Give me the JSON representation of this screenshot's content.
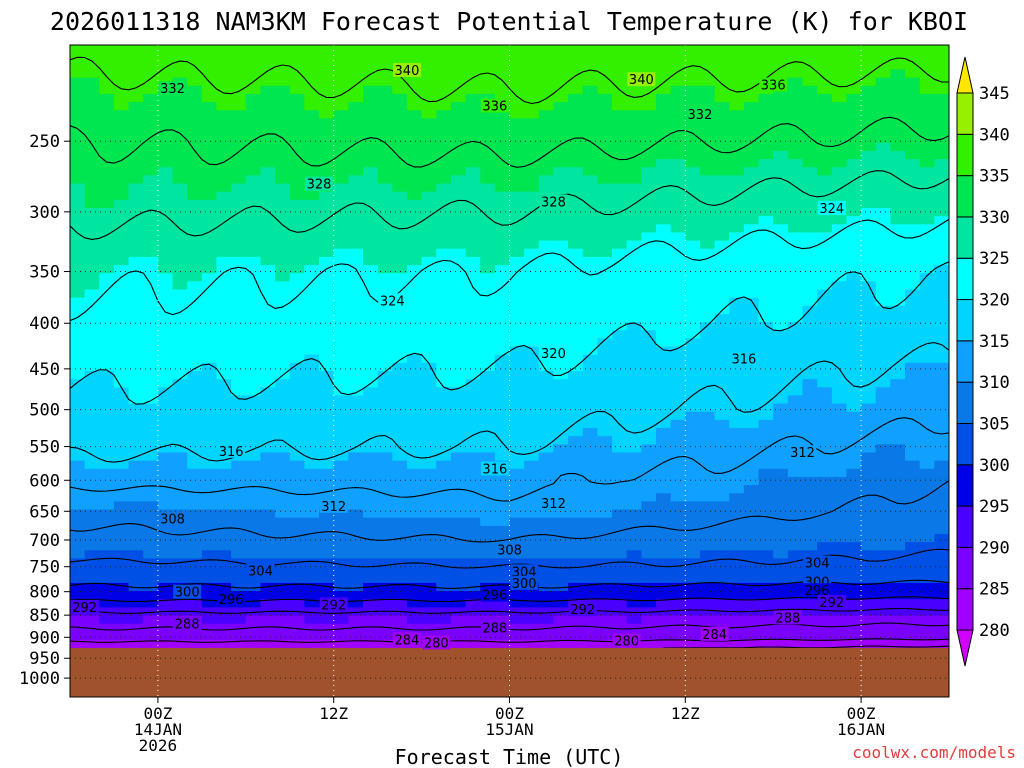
{
  "chart_data": {
    "type": "time-height contour",
    "title": "2026011318 NAM3KM Forecast Potential Temperature (K) for KBOI",
    "xlabel": "Forecast Time (UTC)",
    "ylabel": "",
    "credit": "coolwx.com/models",
    "y_axis": {
      "unit": "hPa",
      "scale": "log",
      "range": [
        200,
        1050
      ],
      "ticks": [
        250,
        300,
        350,
        400,
        450,
        500,
        550,
        600,
        650,
        700,
        750,
        800,
        850,
        900,
        950,
        1000
      ]
    },
    "x_axis": {
      "unit": "hours since 2026-01-13 18Z",
      "range": [
        0,
        60
      ],
      "ticks": [
        {
          "hour": 6,
          "lines": [
            "00Z",
            "14JAN",
            "2026"
          ]
        },
        {
          "hour": 18,
          "lines": [
            "12Z"
          ]
        },
        {
          "hour": 30,
          "lines": [
            "00Z",
            "15JAN"
          ]
        },
        {
          "hour": 42,
          "lines": [
            "12Z"
          ]
        },
        {
          "hour": 54,
          "lines": [
            "00Z",
            "16JAN"
          ]
        }
      ]
    },
    "ground_level_hpa": 925,
    "contour_interval": 4,
    "contour_levels": [
      280,
      284,
      288,
      292,
      296,
      300,
      304,
      308,
      312,
      316,
      320,
      324,
      328,
      332,
      336,
      340
    ],
    "contour_labels": [
      {
        "value": "340",
        "hour": 23,
        "p": 208
      },
      {
        "value": "340",
        "hour": 39,
        "p": 213
      },
      {
        "value": "336",
        "hour": 48,
        "p": 216
      },
      {
        "value": "332",
        "hour": 7,
        "p": 218
      },
      {
        "value": "336",
        "hour": 29,
        "p": 228
      },
      {
        "value": "332",
        "hour": 43,
        "p": 233
      },
      {
        "value": "328",
        "hour": 17,
        "p": 279
      },
      {
        "value": "328",
        "hour": 33,
        "p": 292
      },
      {
        "value": "324",
        "hour": 52,
        "p": 297
      },
      {
        "value": "324",
        "hour": 22,
        "p": 377
      },
      {
        "value": "320",
        "hour": 33,
        "p": 432
      },
      {
        "value": "316",
        "hour": 46,
        "p": 438
      },
      {
        "value": "316",
        "hour": 11,
        "p": 556
      },
      {
        "value": "312",
        "hour": 50,
        "p": 558
      },
      {
        "value": "316",
        "hour": 29,
        "p": 582
      },
      {
        "value": "312",
        "hour": 18,
        "p": 641
      },
      {
        "value": "312",
        "hour": 33,
        "p": 636
      },
      {
        "value": "308",
        "hour": 7,
        "p": 662
      },
      {
        "value": "308",
        "hour": 30,
        "p": 717
      },
      {
        "value": "304",
        "hour": 13,
        "p": 757
      },
      {
        "value": "304",
        "hour": 31,
        "p": 759
      },
      {
        "value": "304",
        "hour": 51,
        "p": 742
      },
      {
        "value": "300",
        "hour": 31,
        "p": 782
      },
      {
        "value": "300",
        "hour": 8,
        "p": 800
      },
      {
        "value": "300",
        "hour": 51,
        "p": 779
      },
      {
        "value": "296",
        "hour": 11,
        "p": 815
      },
      {
        "value": "296",
        "hour": 29,
        "p": 806
      },
      {
        "value": "296",
        "hour": 51,
        "p": 797
      },
      {
        "value": "292",
        "hour": 1,
        "p": 832
      },
      {
        "value": "292",
        "hour": 18,
        "p": 827
      },
      {
        "value": "292",
        "hour": 35,
        "p": 837
      },
      {
        "value": "292",
        "hour": 52,
        "p": 822
      },
      {
        "value": "288",
        "hour": 8,
        "p": 868
      },
      {
        "value": "288",
        "hour": 29,
        "p": 878
      },
      {
        "value": "288",
        "hour": 49,
        "p": 855
      },
      {
        "value": "284",
        "hour": 23,
        "p": 905
      },
      {
        "value": "280",
        "hour": 25,
        "p": 912
      },
      {
        "value": "284",
        "hour": 44,
        "p": 892
      },
      {
        "value": "280",
        "hour": 38,
        "p": 908
      }
    ],
    "colorbar": {
      "title": "Potential Temperature (K)",
      "labels": [
        280,
        285,
        290,
        295,
        300,
        305,
        310,
        315,
        320,
        325,
        330,
        335,
        340,
        345
      ],
      "colors": [
        "#d200ff",
        "#a000ff",
        "#7a00ff",
        "#4a00ff",
        "#0000e6",
        "#0050e6",
        "#0a78e6",
        "#10a0ff",
        "#00d4ff",
        "#00ffff",
        "#00e6a0",
        "#00e650",
        "#32f000",
        "#96f000",
        "#d2f000",
        "#ffe600"
      ],
      "extend": "both"
    },
    "ground_color": "#a0522d",
    "series": [
      {
        "name": "theta_1000_bottom",
        "hour": [
          0,
          60
        ],
        "theta_at_p": {
          "925": 281
        }
      },
      {
        "name": "theta_profile_hour0",
        "pressure": [
          925,
          900,
          850,
          800,
          750,
          700,
          650,
          600,
          550,
          500,
          450,
          400,
          350,
          300,
          250,
          200
        ],
        "values": [
          281,
          286,
          291,
          299,
          303,
          307,
          309,
          313,
          317,
          319,
          321,
          323,
          325,
          329,
          332,
          337
        ]
      },
      {
        "name": "theta_profile_hour30",
        "pressure": [
          925,
          900,
          850,
          800,
          750,
          700,
          650,
          600,
          550,
          500,
          450,
          400,
          350,
          300,
          250,
          200
        ],
        "values": [
          281,
          286,
          291,
          299,
          304,
          308,
          311,
          313,
          316,
          318,
          320,
          322,
          324,
          328,
          333,
          338
        ]
      },
      {
        "name": "theta_profile_hour60",
        "pressure": [
          925,
          900,
          850,
          800,
          750,
          700,
          650,
          600,
          550,
          500,
          450,
          400,
          350,
          300,
          250,
          200
        ],
        "values": [
          279,
          285,
          290,
          298,
          303,
          305,
          307,
          308,
          310,
          313,
          315,
          318,
          320,
          325,
          331,
          337
        ]
      }
    ]
  }
}
